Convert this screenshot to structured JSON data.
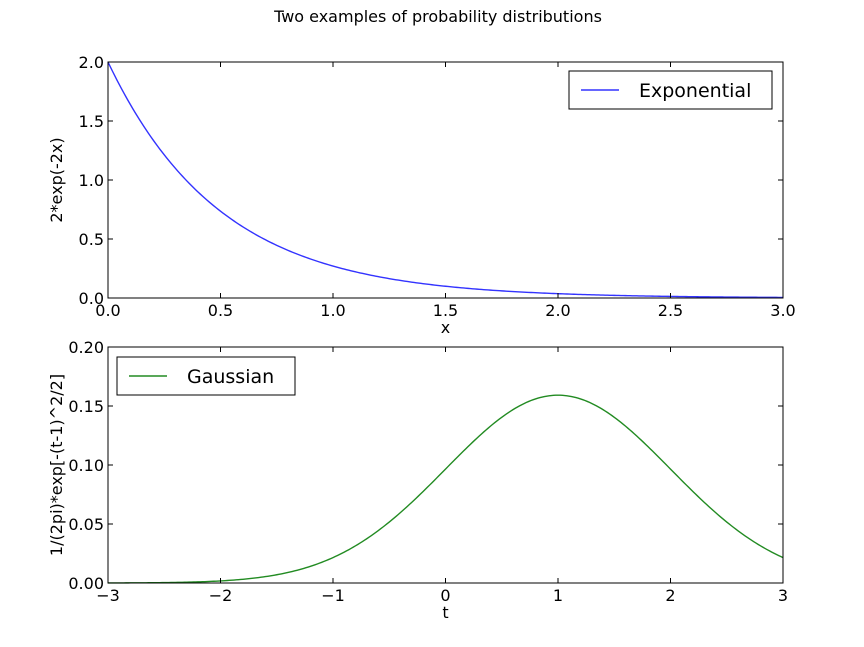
{
  "figure": {
    "title": "Two examples of probability distributions"
  },
  "chart_data": [
    {
      "type": "line",
      "function": "2*exp(-2x)",
      "xlabel": "x",
      "ylabel": "2*exp(-2x)",
      "xlim": [
        0,
        3
      ],
      "ylim": [
        0,
        2
      ],
      "xticks": [
        0,
        0.5,
        1,
        1.5,
        2,
        2.5,
        3
      ],
      "xtick_labels": [
        "0.0",
        "0.5",
        "1.0",
        "1.5",
        "2.0",
        "2.5",
        "3.0"
      ],
      "yticks": [
        0,
        0.5,
        1,
        1.5,
        2
      ],
      "ytick_labels": [
        "0.0",
        "0.5",
        "1.0",
        "1.5",
        "2.0"
      ],
      "grid": false,
      "legend_position": "top-right",
      "series": [
        {
          "name": "Exponential",
          "color": "#3333ff",
          "x": [
            0,
            0.1,
            0.2,
            0.3,
            0.4,
            0.5,
            0.6,
            0.7,
            0.8,
            0.9,
            1.0,
            1.1,
            1.2,
            1.3,
            1.4,
            1.5,
            1.6,
            1.7,
            1.8,
            1.9,
            2.0,
            2.1,
            2.2,
            2.3,
            2.4,
            2.5,
            2.6,
            2.7,
            2.8,
            2.9,
            3.0
          ],
          "y": [
            2.0,
            1.637,
            1.341,
            1.098,
            0.899,
            0.736,
            0.602,
            0.493,
            0.404,
            0.331,
            0.271,
            0.222,
            0.181,
            0.149,
            0.122,
            0.1,
            0.082,
            0.067,
            0.055,
            0.045,
            0.037,
            0.03,
            0.025,
            0.02,
            0.016,
            0.013,
            0.011,
            0.009,
            0.007,
            0.006,
            0.005
          ]
        }
      ]
    },
    {
      "type": "line",
      "function": "1/(2pi)*exp[-(t-1)^2/2]",
      "xlabel": "t",
      "ylabel": "1/(2pi)*exp[-(t-1)^2/2]",
      "xlim": [
        -3,
        3
      ],
      "ylim": [
        0,
        0.2
      ],
      "xticks": [
        -3,
        -2,
        -1,
        0,
        1,
        2,
        3
      ],
      "xtick_labels": [
        "−3",
        "−2",
        "−1",
        "0",
        "1",
        "2",
        "3"
      ],
      "yticks": [
        0,
        0.05,
        0.1,
        0.15,
        0.2
      ],
      "ytick_labels": [
        "0.00",
        "0.05",
        "0.10",
        "0.15",
        "0.20"
      ],
      "grid": false,
      "legend_position": "top-left",
      "series": [
        {
          "name": "Gaussian",
          "color": "#228b22",
          "x": [
            -3,
            -2.75,
            -2.5,
            -2.25,
            -2,
            -1.75,
            -1.5,
            -1.25,
            -1,
            -0.75,
            -0.5,
            -0.25,
            0,
            0.25,
            0.5,
            0.75,
            1,
            1.25,
            1.5,
            1.75,
            2,
            2.25,
            2.5,
            2.75,
            3
          ],
          "y": [
            0.0001,
            0.0002,
            0.0004,
            0.0009,
            0.0018,
            0.0036,
            0.007,
            0.0126,
            0.0215,
            0.0344,
            0.0517,
            0.0731,
            0.0965,
            0.1204,
            0.1405,
            0.1549,
            0.1592,
            0.1549,
            0.1405,
            0.1204,
            0.0965,
            0.0731,
            0.0517,
            0.0344,
            0.0215
          ]
        }
      ]
    }
  ]
}
